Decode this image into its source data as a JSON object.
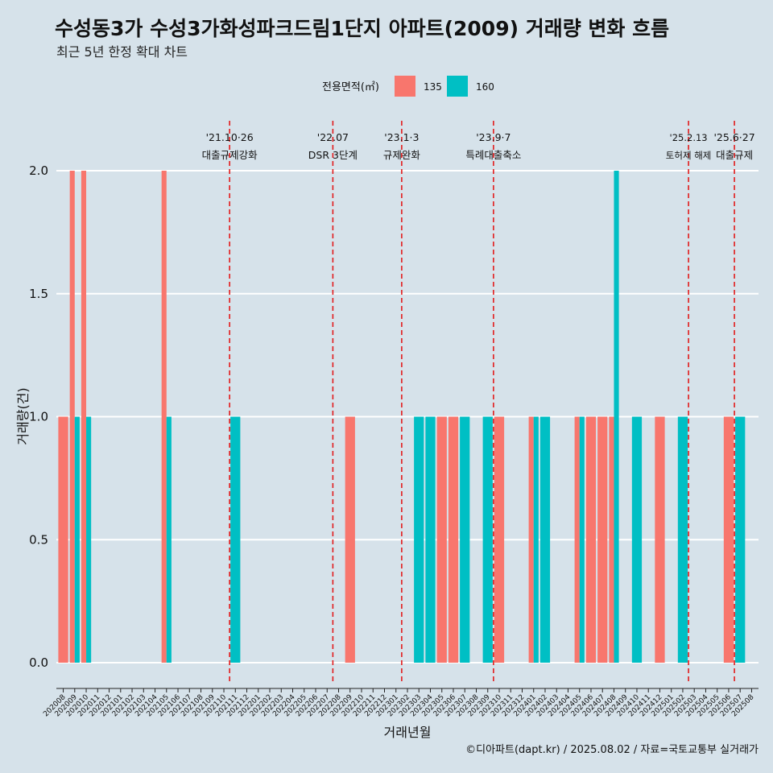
{
  "chart_data": {
    "type": "bar",
    "title": "수성동3가 수성3가화성파크드림1단지 아파트(2009) 거래량 변화 흐름",
    "subtitle": "최근 5년 한정 확대 차트",
    "xlabel": "거래년월",
    "ylabel": "거래량(건)",
    "ylim": [
      0,
      2
    ],
    "y_ticks": [
      "0.0",
      "0.5",
      "1.0",
      "1.5",
      "2.0"
    ],
    "legend": {
      "title": "전용면적(㎡)",
      "entries": [
        {
          "name": "135",
          "color": "#f8766d"
        },
        {
          "name": "160",
          "color": "#00bfc4"
        }
      ]
    },
    "categories": [
      "202008",
      "202009",
      "202010",
      "202011",
      "202012",
      "202101",
      "202102",
      "202103",
      "202104",
      "202105",
      "202106",
      "202107",
      "202108",
      "202109",
      "202110",
      "202111",
      "202112",
      "202201",
      "202202",
      "202203",
      "202204",
      "202205",
      "202206",
      "202207",
      "202208",
      "202209",
      "202210",
      "202211",
      "202212",
      "202301",
      "202302",
      "202303",
      "202304",
      "202305",
      "202306",
      "202307",
      "202308",
      "202309",
      "202310",
      "202311",
      "202312",
      "202401",
      "202402",
      "202403",
      "202404",
      "202405",
      "202406",
      "202407",
      "202408",
      "202409",
      "202410",
      "202411",
      "202412",
      "202501",
      "202502",
      "202503",
      "202504",
      "202505",
      "202506",
      "202507",
      "202508"
    ],
    "series": [
      {
        "name": "135",
        "color": "#f8766d",
        "values": [
          1,
          2,
          2,
          0,
          0,
          0,
          0,
          0,
          0,
          2,
          0,
          0,
          0,
          0,
          0,
          0,
          0,
          0,
          0,
          0,
          0,
          0,
          0,
          0,
          0,
          1,
          0,
          0,
          0,
          0,
          0,
          0,
          0,
          1,
          1,
          0,
          0,
          0,
          1,
          0,
          0,
          1,
          0,
          0,
          0,
          1,
          1,
          1,
          1,
          0,
          0,
          0,
          1,
          0,
          0,
          0,
          0,
          0,
          1,
          0,
          0
        ]
      },
      {
        "name": "160",
        "color": "#00bfc4",
        "values": [
          0,
          1,
          1,
          0,
          0,
          0,
          0,
          0,
          0,
          1,
          0,
          0,
          0,
          0,
          0,
          1,
          0,
          0,
          0,
          0,
          0,
          0,
          0,
          0,
          0,
          0,
          0,
          0,
          0,
          0,
          0,
          1,
          1,
          0,
          0,
          1,
          0,
          1,
          0,
          0,
          0,
          1,
          1,
          0,
          0,
          1,
          0,
          0,
          2,
          0,
          1,
          0,
          0,
          0,
          1,
          0,
          0,
          0,
          0,
          1,
          0
        ]
      }
    ],
    "events": [
      {
        "date": "'21.10·26",
        "label": "대출규제강화",
        "x_index": 14.5,
        "small": false
      },
      {
        "date": "'22.07",
        "label": "DSR 3단계",
        "x_index": 23.5,
        "small": false
      },
      {
        "date": "'23.1·3",
        "label": "규제완화",
        "x_index": 29.5,
        "small": false
      },
      {
        "date": "'23.9·7",
        "label": "특례대출축소",
        "x_index": 37.5,
        "small": false
      },
      {
        "date": "'25.2.13",
        "label": "토허제 해제",
        "x_index": 54.5,
        "small": true
      },
      {
        "date": "'25.6·27",
        "label": "대출규제",
        "x_index": 58.5,
        "small": false
      }
    ],
    "caption": "©디아파트(dapt.kr) / 2025.08.02 / 자료=국토교통부 실거래가"
  }
}
